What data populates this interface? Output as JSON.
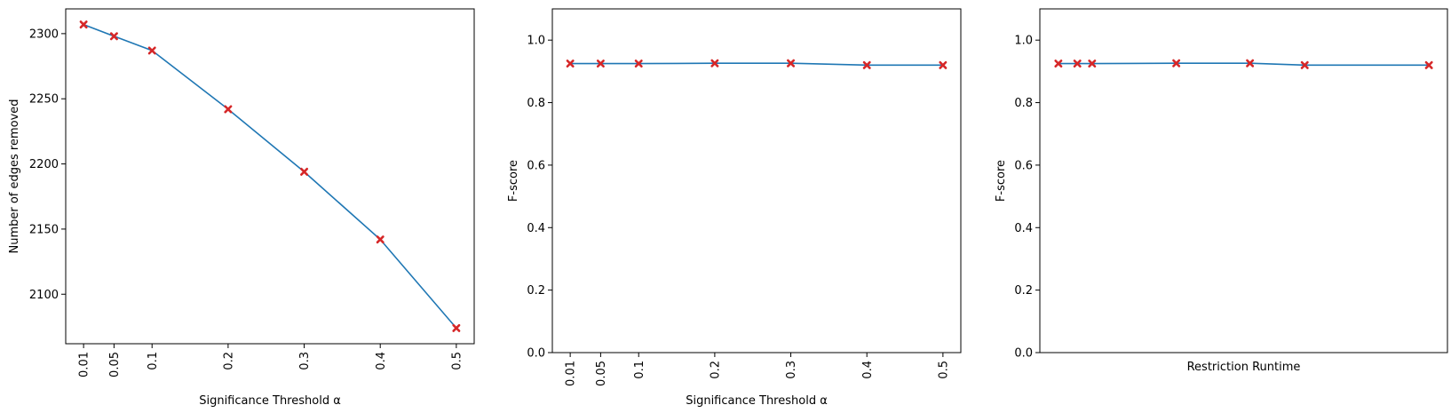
{
  "colors": {
    "line": "#1f77b4",
    "marker": "#d62728",
    "frame": "#000000"
  },
  "chart_data": [
    {
      "type": "line",
      "x": [
        0.01,
        0.05,
        0.1,
        0.2,
        0.3,
        0.4,
        0.5
      ],
      "x_tick_labels": [
        "0.01",
        "0.05",
        "0.1",
        "0.2",
        "0.3",
        "0.4",
        "0.5"
      ],
      "series": [
        {
          "values": [
            2307,
            2298,
            2287,
            2242,
            2194,
            2142,
            2074
          ]
        }
      ],
      "xlabel": "Significance Threshold α",
      "ylabel": "Number of edges removed",
      "yticks": [
        2100,
        2150,
        2200,
        2250,
        2300
      ],
      "ylim": [
        2062,
        2319
      ],
      "xlim": [
        -0.0135,
        0.5235
      ],
      "grid": false,
      "marker": "X"
    },
    {
      "type": "line",
      "x": [
        0.01,
        0.05,
        0.1,
        0.2,
        0.3,
        0.4,
        0.5
      ],
      "x_tick_labels": [
        "0.01",
        "0.05",
        "0.1",
        "0.2",
        "0.3",
        "0.4",
        "0.5"
      ],
      "series": [
        {
          "values": [
            0.925,
            0.925,
            0.925,
            0.926,
            0.926,
            0.92,
            0.92
          ]
        }
      ],
      "xlabel": "Significance Threshold α",
      "ylabel": "F-score",
      "yticks": [
        0.0,
        0.2,
        0.4,
        0.6,
        0.8,
        1.0
      ],
      "ytick_labels": [
        "0.0",
        "0.2",
        "0.4",
        "0.6",
        "0.8",
        "1.0"
      ],
      "ylim": [
        0,
        1.1
      ],
      "xlim": [
        -0.0135,
        0.5235
      ],
      "grid": false,
      "marker": "X"
    },
    {
      "type": "line",
      "x": [
        0.0,
        0.045,
        0.08,
        0.28,
        0.455,
        0.585,
        0.88
      ],
      "x_tick_labels": [],
      "series": [
        {
          "values": [
            0.925,
            0.925,
            0.925,
            0.926,
            0.926,
            0.92,
            0.92
          ]
        }
      ],
      "xlabel": "Restriction Runtime",
      "ylabel": "F-score",
      "yticks": [
        0.0,
        0.2,
        0.4,
        0.6,
        0.8,
        1.0
      ],
      "ytick_labels": [
        "0.0",
        "0.2",
        "0.4",
        "0.6",
        "0.8",
        "1.0"
      ],
      "ylim": [
        0,
        1.1
      ],
      "xlim": [
        -0.044,
        0.924
      ],
      "grid": false,
      "marker": "X"
    }
  ]
}
